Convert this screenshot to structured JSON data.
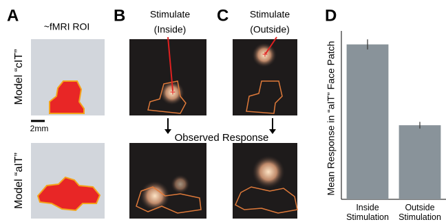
{
  "panels": {
    "a": {
      "label": "A",
      "title": "~fMRI ROI",
      "row_top": "Model “cIT”",
      "row_bottom": "Model “aIT”",
      "scale_bar": "2mm"
    },
    "b": {
      "label": "B",
      "title_line1": "Stimulate",
      "title_line2": "(Inside)"
    },
    "c": {
      "label": "C",
      "title_line1": "Stimulate",
      "title_line2": "(Outside)"
    },
    "observed": "Observed Response",
    "d": {
      "label": "D"
    }
  },
  "chart_data": {
    "type": "bar",
    "ylabel": "Mean Response in “aIT” Face Patch",
    "categories": [
      "Inside Stimulation",
      "Outside Stimulation"
    ],
    "values": [
      0.92,
      0.44
    ],
    "errors": [
      0.03,
      0.02
    ],
    "color": "#89939a",
    "ylim": [
      0,
      1
    ]
  }
}
